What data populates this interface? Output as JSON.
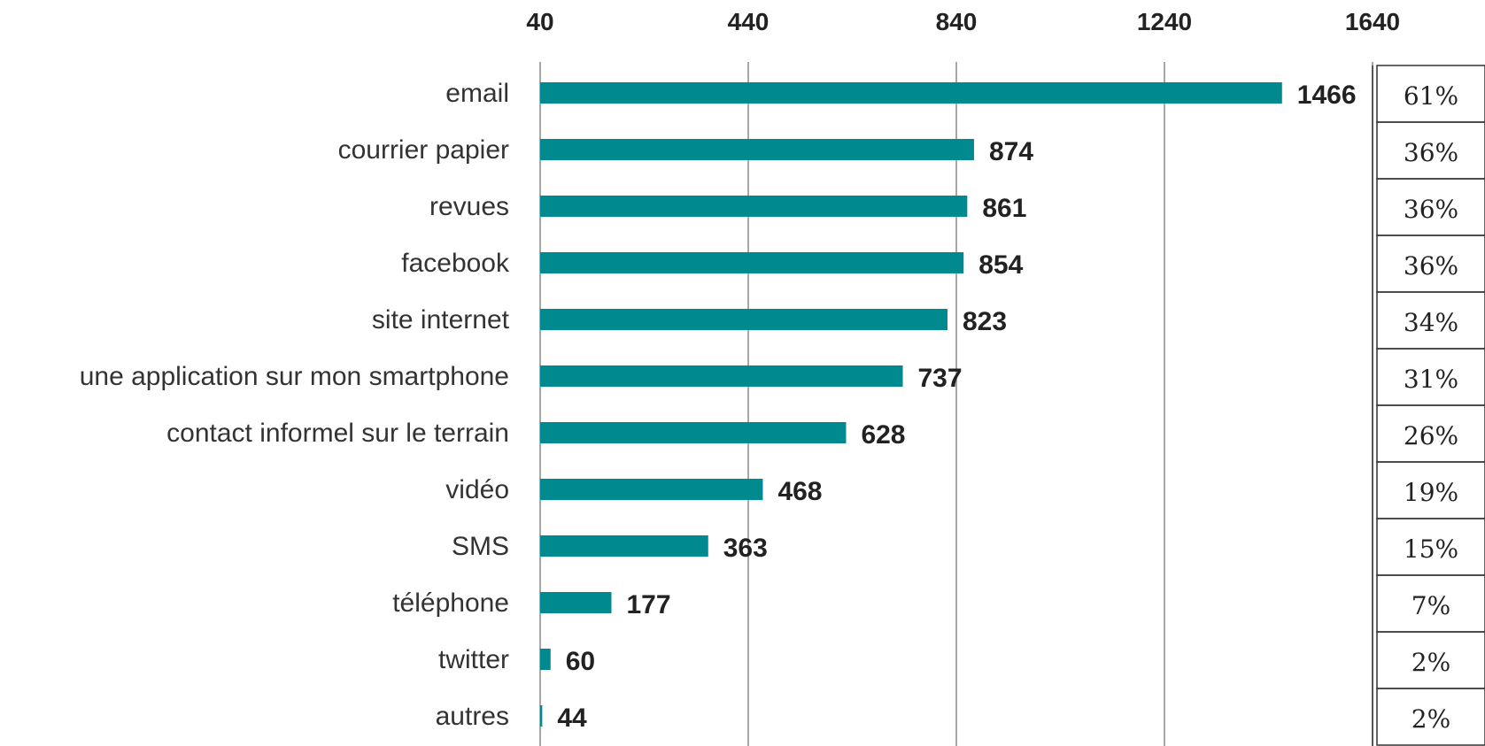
{
  "chart_data": {
    "type": "bar",
    "orientation": "horizontal",
    "categories": [
      "email",
      "courrier papier",
      "revues",
      "facebook",
      "site internet",
      "une application sur mon smartphone",
      "contact informel sur le terrain",
      "vidéo",
      "SMS",
      "téléphone",
      "twitter",
      "autres"
    ],
    "values": [
      1466,
      874,
      861,
      854,
      823,
      737,
      628,
      468,
      363,
      177,
      60,
      44
    ],
    "percentages": [
      "61%",
      "36%",
      "36%",
      "36%",
      "34%",
      "31%",
      "26%",
      "19%",
      "15%",
      "7%",
      "2%",
      "2%"
    ],
    "xlim": [
      40,
      1640
    ],
    "xticks": [
      "40",
      "440",
      "840",
      "1240",
      "1640"
    ],
    "grid": true,
    "bar_color": "#00898F"
  }
}
